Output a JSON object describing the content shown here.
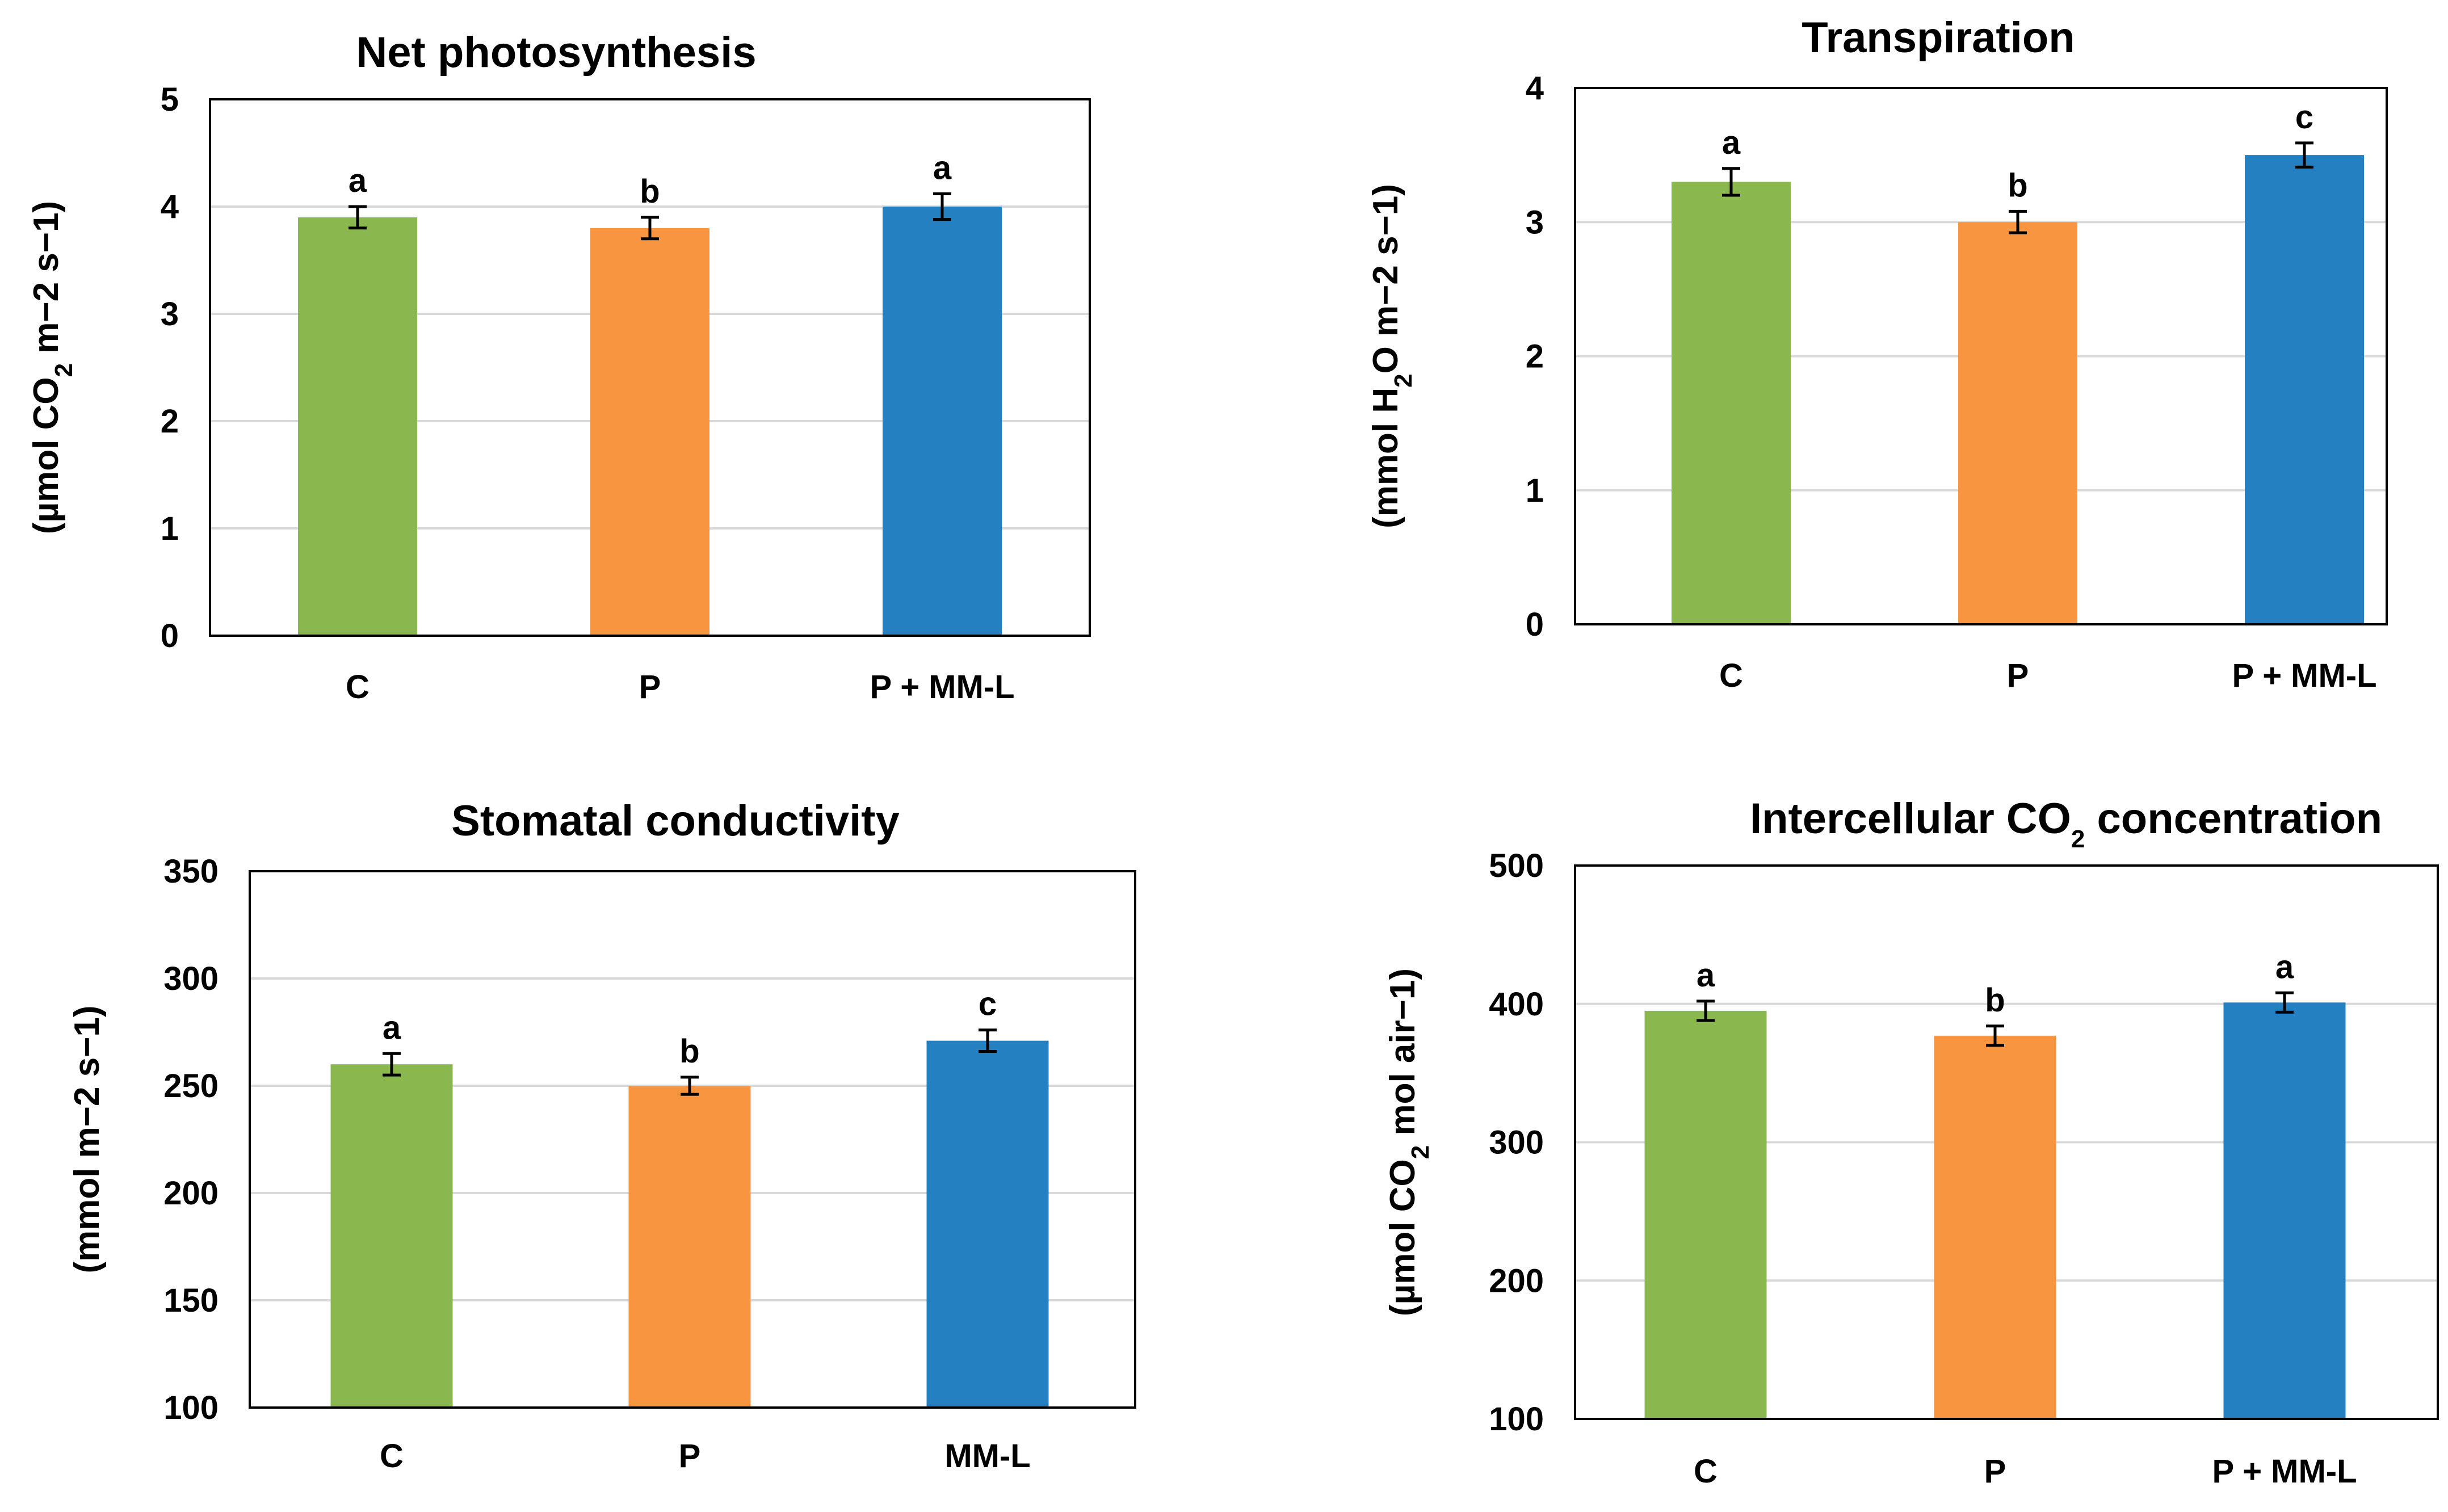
{
  "chart_data": [
    {
      "type": "bar",
      "title": "Net photosynthesis",
      "title_parts": [
        {
          "t": "Net photosynthesis"
        }
      ],
      "xlabel": "",
      "ylabel": "(µmol CO2 m−2 s−1)",
      "ylabel_parts": [
        {
          "t": "(µmol CO"
        },
        {
          "t": "2",
          "sub": true
        },
        {
          "t": " m−2 s−1)"
        }
      ],
      "categories": [
        "C",
        "P",
        "P + MM-L"
      ],
      "values": [
        3.9,
        3.8,
        4.0
      ],
      "errors": [
        0.1,
        0.1,
        0.12
      ],
      "significance": [
        "a",
        "b",
        "a"
      ],
      "colors": [
        "#8ab84f",
        "#f79540",
        "#2580c1"
      ],
      "ylim": [
        0,
        5
      ],
      "yticks": [
        0,
        1,
        2,
        3,
        4,
        5
      ],
      "grid": true,
      "legend": "none"
    },
    {
      "type": "bar",
      "title": "Transpiration",
      "title_parts": [
        {
          "t": "Transpiration"
        }
      ],
      "xlabel": "",
      "ylabel": "(mmol H2O m−2 s−1)",
      "ylabel_parts": [
        {
          "t": "(mmol H"
        },
        {
          "t": "2",
          "sub": true
        },
        {
          "t": "O m−2 s−1)"
        }
      ],
      "categories": [
        "C",
        "P",
        "P + MM-L"
      ],
      "values": [
        3.3,
        3.0,
        3.5
      ],
      "errors": [
        0.1,
        0.08,
        0.09
      ],
      "significance": [
        "a",
        "b",
        "c"
      ],
      "colors": [
        "#8ab84f",
        "#f79540",
        "#2580c1"
      ],
      "ylim": [
        0,
        4
      ],
      "yticks": [
        0,
        1,
        2,
        3,
        4
      ],
      "grid": true,
      "legend": "none"
    },
    {
      "type": "bar",
      "title": "Stomatal conductivity",
      "title_parts": [
        {
          "t": "Stomatal conductivity"
        }
      ],
      "xlabel": "",
      "ylabel": "(mmol m−2 s−1)",
      "ylabel_parts": [
        {
          "t": "(mmol m−2 s−1)"
        }
      ],
      "categories": [
        "C",
        "P",
        "MM-L"
      ],
      "values": [
        260,
        250,
        271
      ],
      "errors": [
        5,
        4,
        5
      ],
      "significance": [
        "a",
        "b",
        "c"
      ],
      "colors": [
        "#8ab84f",
        "#f79540",
        "#2580c1"
      ],
      "ylim": [
        100,
        350
      ],
      "yticks": [
        100,
        150,
        200,
        250,
        300,
        350
      ],
      "grid": true,
      "legend": "none"
    },
    {
      "type": "bar",
      "title": "Intercellular CO2 concentration",
      "title_parts": [
        {
          "t": "Intercellular CO"
        },
        {
          "t": "2",
          "sub": true
        },
        {
          "t": " concentration"
        }
      ],
      "xlabel": "",
      "ylabel": "(µmol CO2 mol air−1)",
      "ylabel_parts": [
        {
          "t": "(µmol CO"
        },
        {
          "t": "2",
          "sub": true
        },
        {
          "t": " mol air−1)"
        }
      ],
      "categories": [
        "C",
        "P",
        "P + MM-L"
      ],
      "values": [
        395,
        377,
        401
      ],
      "errors": [
        7,
        7,
        7
      ],
      "significance": [
        "a",
        "b",
        "a"
      ],
      "colors": [
        "#8ab84f",
        "#f79540",
        "#2580c1"
      ],
      "ylim": [
        100,
        500
      ],
      "yticks": [
        100,
        200,
        300,
        400,
        500
      ],
      "grid": true,
      "legend": "none"
    }
  ]
}
